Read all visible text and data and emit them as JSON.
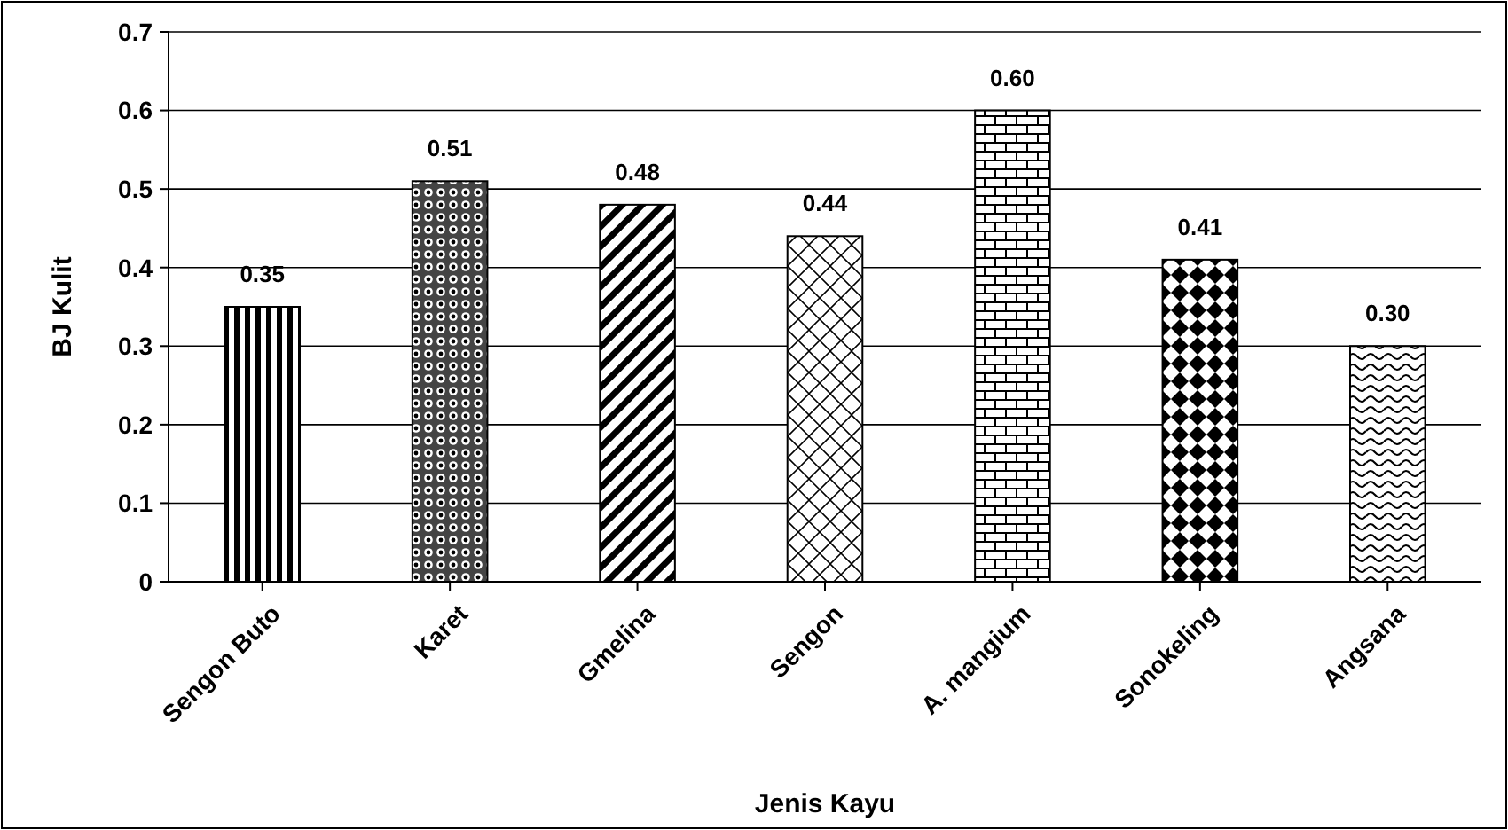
{
  "chart_data": {
    "type": "bar",
    "xlabel": "Jenis Kayu",
    "ylabel": "BJ Kulit",
    "categories": [
      "Sengon Buto",
      "Karet",
      "Gmelina",
      "Sengon",
      "A. mangium",
      "Sonokeling",
      "Angsana"
    ],
    "values": [
      0.35,
      0.51,
      0.48,
      0.44,
      0.6,
      0.41,
      0.3
    ],
    "value_labels": [
      "0.35",
      "0.51",
      "0.48",
      "0.44",
      "0.60",
      "0.41",
      "0.30"
    ],
    "color": "#000000",
    "ylim": [
      0,
      0.7
    ],
    "yticks": [
      0,
      0.1,
      0.2,
      0.3,
      0.4,
      0.5,
      0.6,
      0.7
    ],
    "grid": "y"
  }
}
